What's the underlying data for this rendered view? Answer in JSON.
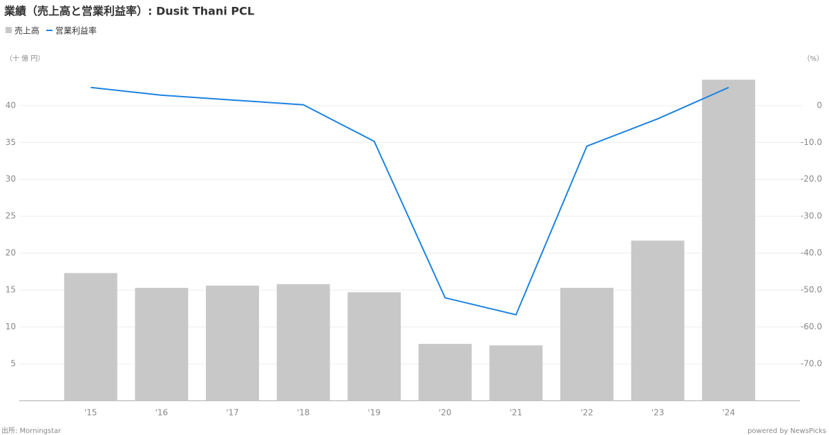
{
  "chart_data": {
    "type": "bar-line",
    "title": "業績（売上高と営業利益率）: Dusit Thani PCL",
    "y_label": "（十 億 円）",
    "y2_label": "（%）",
    "source": "出所: Morningstar",
    "credit": "powered by NewsPicks",
    "categories": [
      "'15",
      "'16",
      "'17",
      "'18",
      "'19",
      "'20",
      "'21",
      "'22",
      "'23",
      "'24"
    ],
    "series": [
      {
        "name": "売上高",
        "type": "bar",
        "color": "#c8c8c8",
        "values": [
          17.3,
          15.3,
          15.6,
          15.8,
          14.7,
          7.7,
          7.5,
          15.3,
          21.7,
          43.5
        ]
      },
      {
        "name": "営業利益率",
        "type": "line",
        "axis": "y2",
        "color": "#1a82e2",
        "values": [
          4.9,
          2.8,
          1.5,
          0.2,
          -9.7,
          -52.1,
          -56.7,
          -11.0,
          -3.6,
          4.9
        ]
      }
    ],
    "ylim": [
      0,
      45
    ],
    "yticks": [
      5,
      10,
      15,
      20,
      25,
      30,
      35,
      40
    ],
    "y2lim": [
      -80,
      10
    ],
    "y2ticks": [
      0,
      {
        "value": -10,
        "label": "-10.0"
      },
      {
        "value": -20,
        "label": "-20.0"
      },
      {
        "value": -30,
        "label": "-30.0"
      },
      {
        "value": -40,
        "label": "-40.0"
      },
      {
        "value": -50,
        "label": "-50.0"
      },
      {
        "value": -60,
        "label": "-60.0"
      },
      {
        "value": -70,
        "label": "-70.0"
      }
    ],
    "grid": true,
    "legend": "top-left"
  }
}
